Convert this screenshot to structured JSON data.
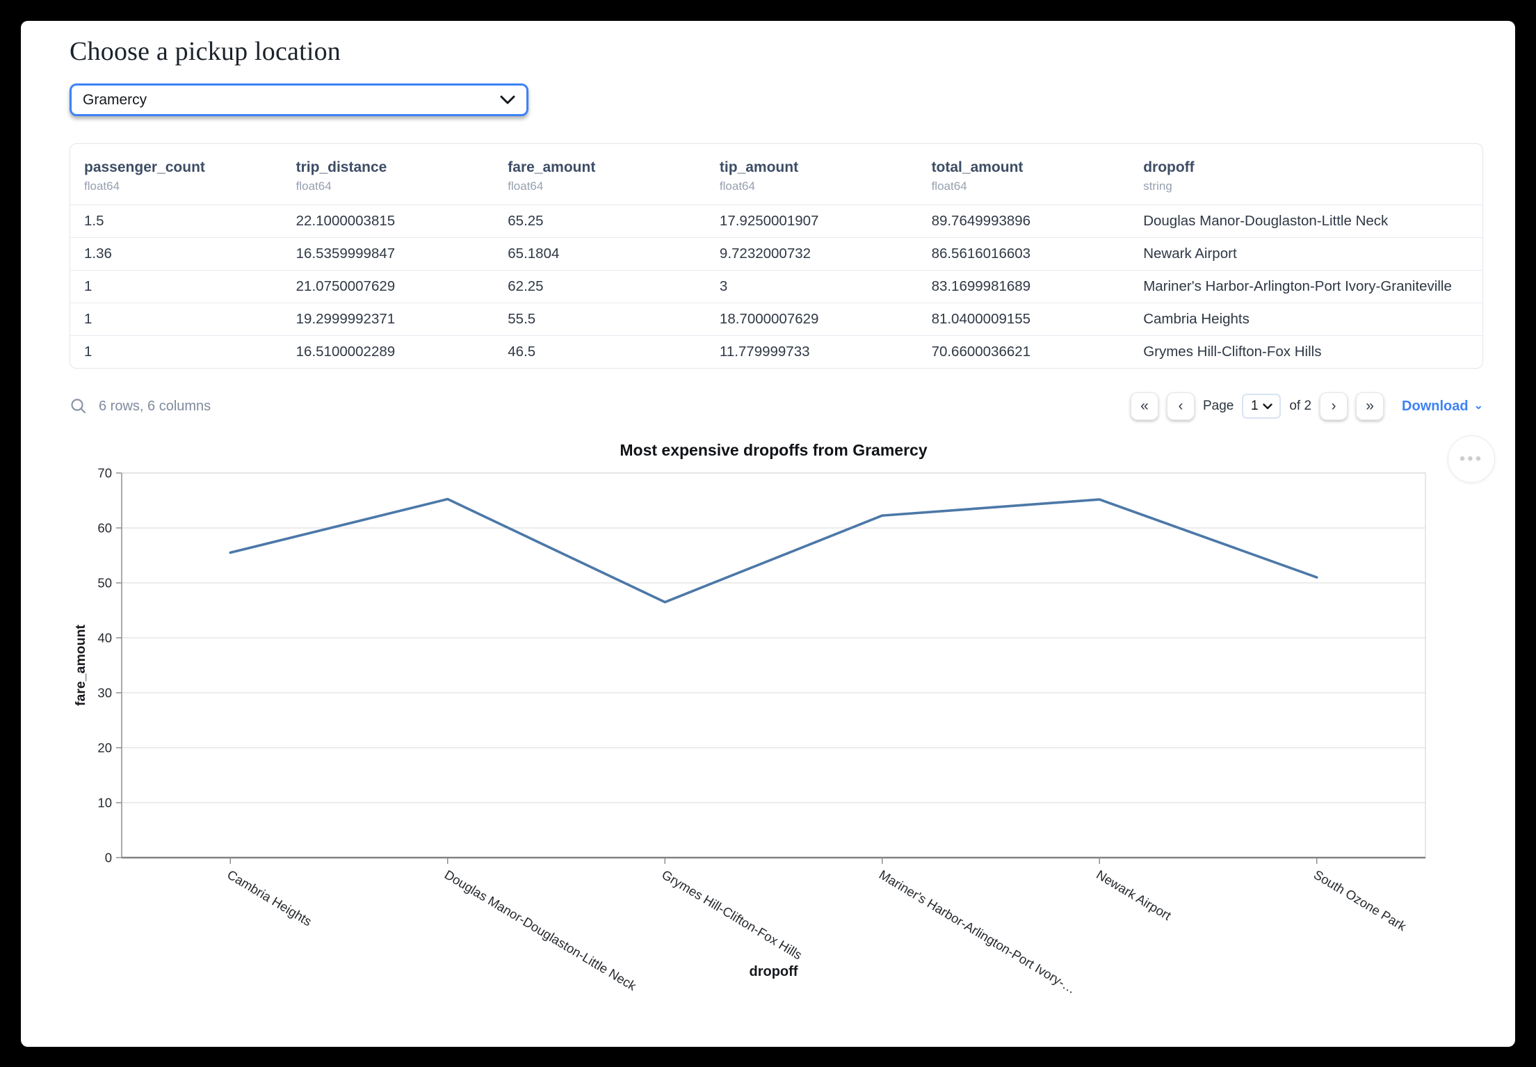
{
  "header": {
    "title": "Choose a pickup location"
  },
  "pickup_select": {
    "value": "Gramercy"
  },
  "table": {
    "columns": [
      {
        "name": "passenger_count",
        "type": "float64"
      },
      {
        "name": "trip_distance",
        "type": "float64"
      },
      {
        "name": "fare_amount",
        "type": "float64"
      },
      {
        "name": "tip_amount",
        "type": "float64"
      },
      {
        "name": "total_amount",
        "type": "float64"
      },
      {
        "name": "dropoff",
        "type": "string"
      }
    ],
    "rows": [
      [
        "1.5",
        "22.1000003815",
        "65.25",
        "17.9250001907",
        "89.7649993896",
        "Douglas Manor-Douglaston-Little Neck"
      ],
      [
        "1.36",
        "16.5359999847",
        "65.1804",
        "9.7232000732",
        "86.5616016603",
        "Newark Airport"
      ],
      [
        "1",
        "21.0750007629",
        "62.25",
        "3",
        "83.1699981689",
        "Mariner's Harbor-Arlington-Port Ivory-Graniteville"
      ],
      [
        "1",
        "19.2999992371",
        "55.5",
        "18.7000007629",
        "81.0400009155",
        "Cambria Heights"
      ],
      [
        "1",
        "16.5100002289",
        "46.5",
        "11.779999733",
        "70.6600036621",
        "Grymes Hill-Clifton-Fox Hills"
      ]
    ]
  },
  "table_footer": {
    "summary": "6 rows, 6 columns",
    "page_label": "Page",
    "page_value": "1",
    "of_label": "of 2",
    "download_label": "Download"
  },
  "icons": {
    "search": "⌕",
    "first_page": "«",
    "prev_page": "‹",
    "next_page": "›",
    "last_page": "»",
    "chevron_down": "⌄",
    "menu_ellipsis": "•••"
  },
  "chart_data": {
    "type": "line",
    "title": "Most expensive dropoffs from Gramercy",
    "xlabel": "dropoff",
    "ylabel": "fare_amount",
    "categories": [
      "Cambria Heights",
      "Douglas Manor-Douglaston-Little Neck",
      "Grymes Hill-Clifton-Fox Hills",
      "Mariner's Harbor-Arlington-Port Ivory-…",
      "Newark Airport",
      "South Ozone Park"
    ],
    "values": [
      55.5,
      65.25,
      46.5,
      62.25,
      65.1804,
      51
    ],
    "ylim": [
      0,
      70
    ],
    "yticks": [
      0,
      10,
      20,
      30,
      40,
      50,
      60,
      70
    ],
    "grid": true,
    "legend": "none",
    "line_color": "#4c78a8",
    "grid_color": "#e0e0e0",
    "axis_color": "#818181",
    "label_color": "#26292e"
  }
}
